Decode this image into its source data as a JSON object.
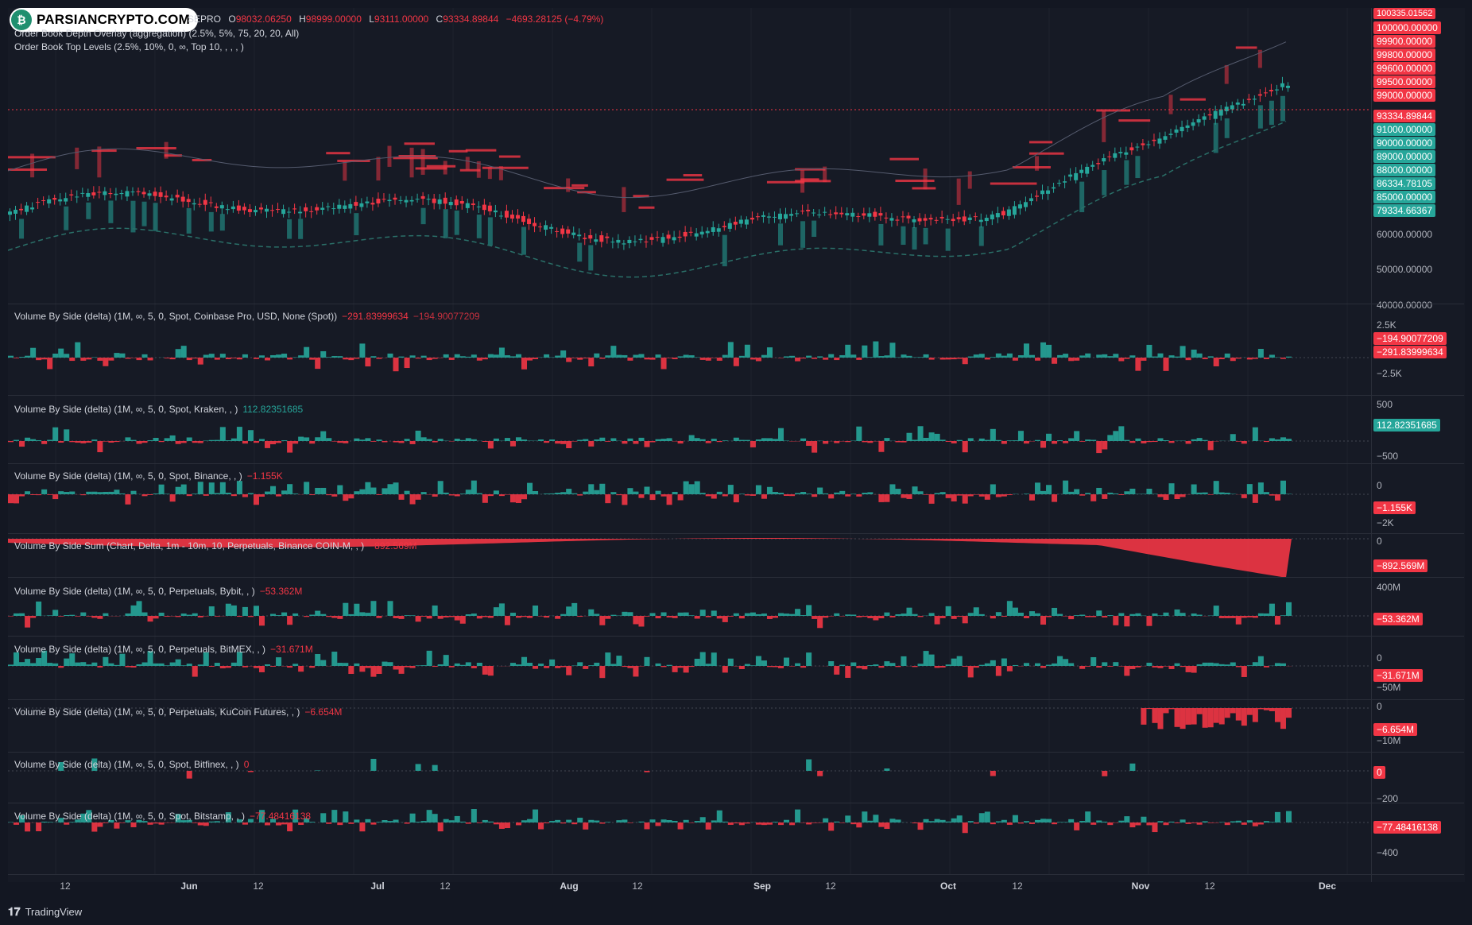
{
  "logo": {
    "text": "PARSIANCRYPTO.COM"
  },
  "main_chart": {
    "symbol_fragment": "SEPRO",
    "ohlc": {
      "o_label": "O",
      "o": "98032.06250",
      "h_label": "H",
      "h": "98999.00000",
      "l_label": "L",
      "l": "93111.00000",
      "c_label": "C",
      "c": "93334.89844",
      "change": "−4693.28125 (−4.79%)"
    },
    "indicator_1": "Order Book Depth Overlay (aggregation) (2.5%, 5%, 75, 20, 20, All)",
    "indicator_2": "Order Book Top Levels (2.5%, 10%, 0, ∞, Top 10, , , , )"
  },
  "panes": [
    {
      "title": "Volume By Side (delta) (1M, ∞, 5, 0, Spot, Coinbase Pro, USD, None (Spot))",
      "value1": "−291.83999634",
      "value2": "−194.90077209"
    },
    {
      "title": "Volume By Side (delta) (1M, ∞, 5, 0, Spot, Kraken, , )",
      "value1": "112.82351685"
    },
    {
      "title": "Volume By Side (delta) (1M, ∞, 5, 0, Spot, Binance, , )",
      "value1": "−1.155K"
    },
    {
      "title": "Volume By Side Sum (Chart, Delta, 1m - 10m, 10, Perpetuals, Binance COIN-M, , )",
      "value1": "−892.569M"
    },
    {
      "title": "Volume By Side (delta) (1M, ∞, 5, 0, Perpetuals, Bybit, , )",
      "value1": "−53.362M"
    },
    {
      "title": "Volume By Side (delta) (1M, ∞, 5, 0, Perpetuals, BitMEX, , )",
      "value1": "−31.671M"
    },
    {
      "title": "Volume By Side (delta) (1M, ∞, 5, 0, Perpetuals, KuCoin Futures, , )",
      "value1": "−6.654M"
    },
    {
      "title": "Volume By Side (delta) (1M, ∞, 5, 0, Spot, Bitfinex, , )",
      "value1": "0"
    },
    {
      "title": "Volume By Side (delta) (1M, ∞, 5, 0, Spot, Bitstamp, , )",
      "value1": "−77.48416138"
    }
  ],
  "price_scale": {
    "top_cut": "100335.01562",
    "red_tags": [
      "100000.00000",
      "99900.00000",
      "99800.00000",
      "99600.00000",
      "99500.00000",
      "99000.00000"
    ],
    "last_price": "93334.89844",
    "green_tags": [
      "91000.00000",
      "90000.00000",
      "89000.00000",
      "88000.00000",
      "86334.78105",
      "85000.00000",
      "79334.66367"
    ],
    "plain": [
      "60000.00000",
      "50000.00000",
      "40000.00000"
    ]
  },
  "pane_scales": {
    "coinbase": {
      "top": "2.5K",
      "tag1": "−194.90077209",
      "tag2": "−291.83999634",
      "bottom": "−2.5K"
    },
    "kraken": {
      "top": "500",
      "tag": "112.82351685",
      "bottom": "−500"
    },
    "binance": {
      "top": "0",
      "tag": "−1.155K",
      "bottom": "−2K"
    },
    "coinm": {
      "top": "0",
      "tag": "−892.569M"
    },
    "bybit": {
      "top": "400M",
      "tag": "−53.362M"
    },
    "bitmex": {
      "top": "0",
      "tag": "−31.671M",
      "bottom": "−50M"
    },
    "kucoin": {
      "top": "0",
      "tag": "−6.654M",
      "bottom": "−10M"
    },
    "bitfinex": {
      "tag": "0",
      "bottom": "−200"
    },
    "bitstamp": {
      "tag": "−77.48416138",
      "bottom": "−400"
    }
  },
  "time_axis": [
    "12",
    "Jun",
    "12",
    "Jul",
    "12",
    "Aug",
    "12",
    "Sep",
    "12",
    "Oct",
    "12",
    "Nov",
    "12",
    "Dec"
  ],
  "footer": {
    "brand": "TradingView"
  },
  "colors": {
    "up": "#26a69a",
    "down": "#f23645",
    "background": "#131722",
    "pane": "#161a25"
  }
}
